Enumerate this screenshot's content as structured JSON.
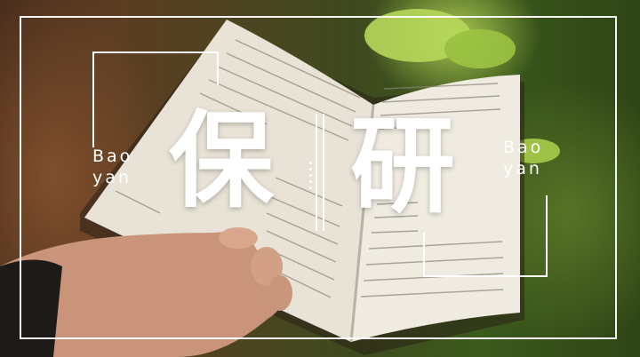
{
  "title": {
    "char_left": "保",
    "char_right": "研"
  },
  "side_labels": {
    "left_line1": "Bao",
    "left_line2": "yan",
    "right_line1": "Bao",
    "right_line2": "yan"
  },
  "colors": {
    "overlay_text": "#ffffff",
    "foliage": "#8fbf3a",
    "trunk": "#5d3d22"
  }
}
